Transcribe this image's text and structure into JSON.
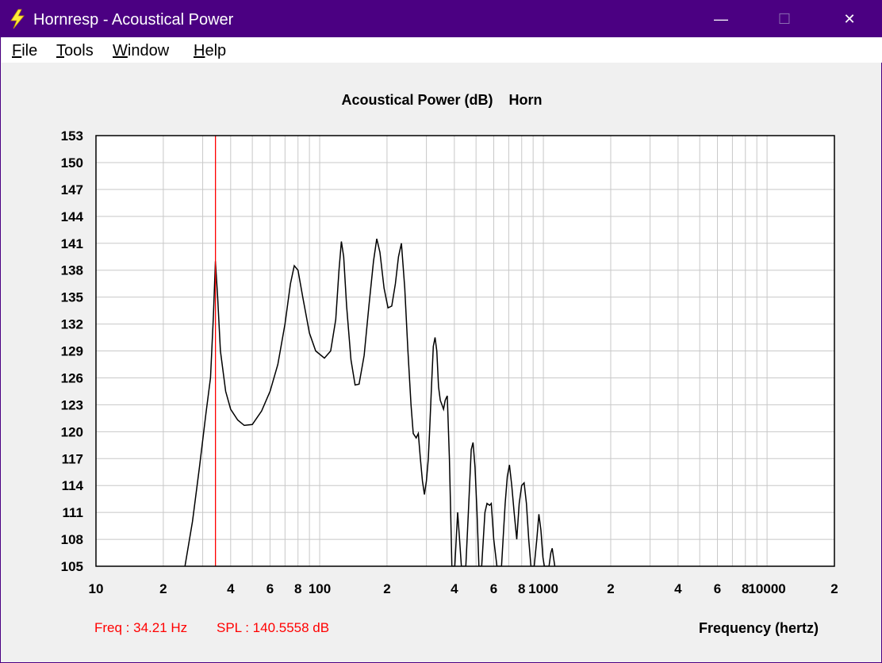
{
  "window": {
    "title": "Hornresp - Acoustical Power",
    "minimize_glyph": "—",
    "maximize_glyph": "☐",
    "close_glyph": "✕",
    "titlebar_color": "#4b0082"
  },
  "menu": [
    {
      "first": "F",
      "rest": "ile"
    },
    {
      "first": "T",
      "rest": "ools"
    },
    {
      "first": "W",
      "rest": "indow"
    },
    {
      "first": "H",
      "rest": "elp"
    }
  ],
  "status": {
    "freq": "Freq : 34.21 Hz",
    "spl": "SPL : 140.5558 dB"
  },
  "chart_data": {
    "type": "line",
    "title": "Acoustical Power (dB)    Horn",
    "xlabel": "Frequency (hertz)",
    "ylabel": "",
    "x_scale": "log",
    "xlim": [
      10,
      20000
    ],
    "ylim": [
      105,
      153
    ],
    "grid": true,
    "y_ticks": [
      153,
      150,
      147,
      144,
      141,
      138,
      135,
      132,
      129,
      126,
      123,
      120,
      117,
      114,
      111,
      108,
      105
    ],
    "x_tick_labels": [
      {
        "x": 10,
        "label": "10"
      },
      {
        "x": 20,
        "label": "2"
      },
      {
        "x": 40,
        "label": "4"
      },
      {
        "x": 60,
        "label": "6"
      },
      {
        "x": 80,
        "label": "8"
      },
      {
        "x": 100,
        "label": "100"
      },
      {
        "x": 200,
        "label": "2"
      },
      {
        "x": 400,
        "label": "4"
      },
      {
        "x": 600,
        "label": "6"
      },
      {
        "x": 800,
        "label": "8"
      },
      {
        "x": 1000,
        "label": "1000"
      },
      {
        "x": 2000,
        "label": "2"
      },
      {
        "x": 4000,
        "label": "4"
      },
      {
        "x": 6000,
        "label": "6"
      },
      {
        "x": 8000,
        "label": "8"
      },
      {
        "x": 10000,
        "label": "10000"
      },
      {
        "x": 20000,
        "label": "2"
      }
    ],
    "cursor_x": 34.21,
    "colors": {
      "curve": "#000000",
      "cursor": "#ff0000",
      "grid": "#c8c8c8"
    },
    "series": [
      {
        "points": [
          [
            25,
            105
          ],
          [
            27,
            110
          ],
          [
            29,
            116
          ],
          [
            31,
            122
          ],
          [
            32.5,
            126
          ],
          [
            33.5,
            133
          ],
          [
            34.2,
            139
          ],
          [
            35,
            135
          ],
          [
            36,
            129
          ],
          [
            38,
            124.5
          ],
          [
            40,
            122.5
          ],
          [
            43,
            121.3
          ],
          [
            46,
            120.7
          ],
          [
            50,
            120.8
          ],
          [
            55,
            122.3
          ],
          [
            60,
            124.5
          ],
          [
            65,
            127.5
          ],
          [
            70,
            132
          ],
          [
            74,
            136.5
          ],
          [
            77,
            138.5
          ],
          [
            80,
            138
          ],
          [
            84,
            135
          ],
          [
            90,
            131
          ],
          [
            96,
            129
          ],
          [
            105,
            128.2
          ],
          [
            112,
            129
          ],
          [
            118,
            132.5
          ],
          [
            122,
            138
          ],
          [
            125,
            141.2
          ],
          [
            128,
            139.5
          ],
          [
            132,
            134
          ],
          [
            138,
            128
          ],
          [
            144,
            125.2
          ],
          [
            150,
            125.3
          ],
          [
            158,
            128.5
          ],
          [
            166,
            134
          ],
          [
            174,
            139
          ],
          [
            180,
            141.5
          ],
          [
            186,
            140
          ],
          [
            194,
            136
          ],
          [
            202,
            133.8
          ],
          [
            210,
            134
          ],
          [
            218,
            136.5
          ],
          [
            225,
            139.5
          ],
          [
            232,
            141
          ],
          [
            240,
            136
          ],
          [
            248,
            129
          ],
          [
            256,
            123
          ],
          [
            262,
            119.8
          ],
          [
            270,
            119.3
          ],
          [
            276,
            119.8
          ],
          [
            282,
            117
          ],
          [
            288,
            114.5
          ],
          [
            294,
            113
          ],
          [
            300,
            114.5
          ],
          [
            306,
            117
          ],
          [
            310,
            120
          ],
          [
            316,
            125
          ],
          [
            322,
            129.5
          ],
          [
            328,
            130.5
          ],
          [
            334,
            129
          ],
          [
            340,
            125
          ],
          [
            346,
            123.5
          ],
          [
            352,
            123
          ],
          [
            358,
            122.5
          ],
          [
            364,
            123.5
          ],
          [
            372,
            124
          ],
          [
            380,
            117
          ],
          [
            385,
            111
          ],
          [
            390,
            105
          ],
          [
            402,
            105
          ],
          [
            414,
            111
          ],
          [
            422,
            108
          ],
          [
            430,
            105
          ],
          [
            450,
            105
          ],
          [
            462,
            111
          ],
          [
            476,
            118
          ],
          [
            485,
            118.8
          ],
          [
            495,
            116
          ],
          [
            505,
            111
          ],
          [
            515,
            105
          ],
          [
            530,
            105
          ],
          [
            548,
            111
          ],
          [
            560,
            112
          ],
          [
            575,
            111.8
          ],
          [
            585,
            112
          ],
          [
            600,
            108
          ],
          [
            620,
            105
          ],
          [
            650,
            105
          ],
          [
            675,
            112
          ],
          [
            690,
            115
          ],
          [
            705,
            116.3
          ],
          [
            722,
            114
          ],
          [
            740,
            111
          ],
          [
            760,
            108
          ],
          [
            780,
            112
          ],
          [
            800,
            114
          ],
          [
            820,
            114.3
          ],
          [
            840,
            112
          ],
          [
            860,
            108
          ],
          [
            880,
            105
          ],
          [
            910,
            105
          ],
          [
            935,
            108
          ],
          [
            955,
            110.8
          ],
          [
            975,
            109
          ],
          [
            995,
            106
          ],
          [
            1010,
            105
          ],
          [
            1060,
            105
          ],
          [
            1080,
            106.5
          ],
          [
            1095,
            107
          ],
          [
            1110,
            106
          ],
          [
            1125,
            105
          ]
        ]
      }
    ]
  }
}
